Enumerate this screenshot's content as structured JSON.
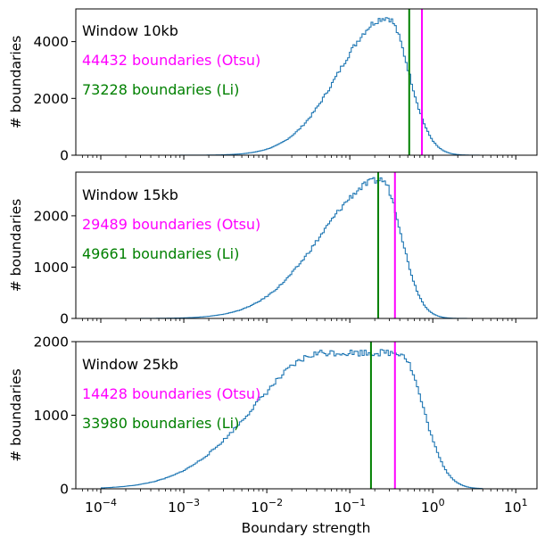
{
  "chart_data": [
    {
      "type": "histogram",
      "xscale": "log",
      "xlim": [
        5e-05,
        18
      ],
      "ylim": [
        0,
        5150
      ],
      "yticks": [
        0,
        2000,
        4000
      ],
      "ylabel": "# boundaries",
      "xlabel": "",
      "grid": false,
      "hist": {
        "color": "#1f77b4",
        "log_mu": -0.55,
        "sigma_left": 0.58,
        "sigma_right": 0.26,
        "peak": 4850,
        "xmin": 0.0003,
        "xmax": 4
      },
      "thresholds": [
        {
          "name": "Otsu",
          "x": 0.74,
          "color": "#ff00ff"
        },
        {
          "name": "Li",
          "x": 0.52,
          "color": "#008000"
        }
      ],
      "annotations": [
        {
          "text": "Window 10kb",
          "color": "#000000"
        },
        {
          "text": "44432 boundaries (Otsu)",
          "color": "#ff00ff"
        },
        {
          "text": "73228 boundaries (Li)",
          "color": "#008000"
        }
      ]
    },
    {
      "type": "histogram",
      "xscale": "log",
      "xlim": [
        5e-05,
        18
      ],
      "ylim": [
        0,
        2850
      ],
      "yticks": [
        0,
        1000,
        2000
      ],
      "ylabel": "# boundaries",
      "xlabel": "",
      "grid": false,
      "hist": {
        "color": "#1f77b4",
        "log_mu": -0.62,
        "sigma_left": 0.72,
        "sigma_right": 0.24,
        "peak": 2700,
        "xmin": 0.0003,
        "xmax": 4
      },
      "thresholds": [
        {
          "name": "Otsu",
          "x": 0.35,
          "color": "#ff00ff"
        },
        {
          "name": "Li",
          "x": 0.22,
          "color": "#008000"
        }
      ],
      "annotations": [
        {
          "text": "Window 15kb",
          "color": "#000000"
        },
        {
          "text": "29489 boundaries (Otsu)",
          "color": "#ff00ff"
        },
        {
          "text": "49661 boundaries (Li)",
          "color": "#008000"
        }
      ]
    },
    {
      "type": "histogram",
      "xscale": "log",
      "xlim": [
        5e-05,
        18
      ],
      "ylim": [
        0,
        2000
      ],
      "yticks": [
        0,
        1000,
        2000
      ],
      "ylabel": "# boundaries",
      "xlabel": "Boundary strength",
      "grid": false,
      "hist": {
        "color": "#1f77b4",
        "log_mu": -0.75,
        "sigma_left": 0.85,
        "sigma_right": 0.28,
        "plateau": [
          -1.3,
          -0.4
        ],
        "peak": 1850,
        "xmin": 0.0001,
        "xmax": 4
      },
      "thresholds": [
        {
          "name": "Otsu",
          "x": 0.35,
          "color": "#ff00ff"
        },
        {
          "name": "Li",
          "x": 0.18,
          "color": "#008000"
        }
      ],
      "annotations": [
        {
          "text": "Window 25kb",
          "color": "#000000"
        },
        {
          "text": "14428 boundaries (Otsu)",
          "color": "#ff00ff"
        },
        {
          "text": "33980 boundaries (Li)",
          "color": "#008000"
        }
      ]
    }
  ]
}
